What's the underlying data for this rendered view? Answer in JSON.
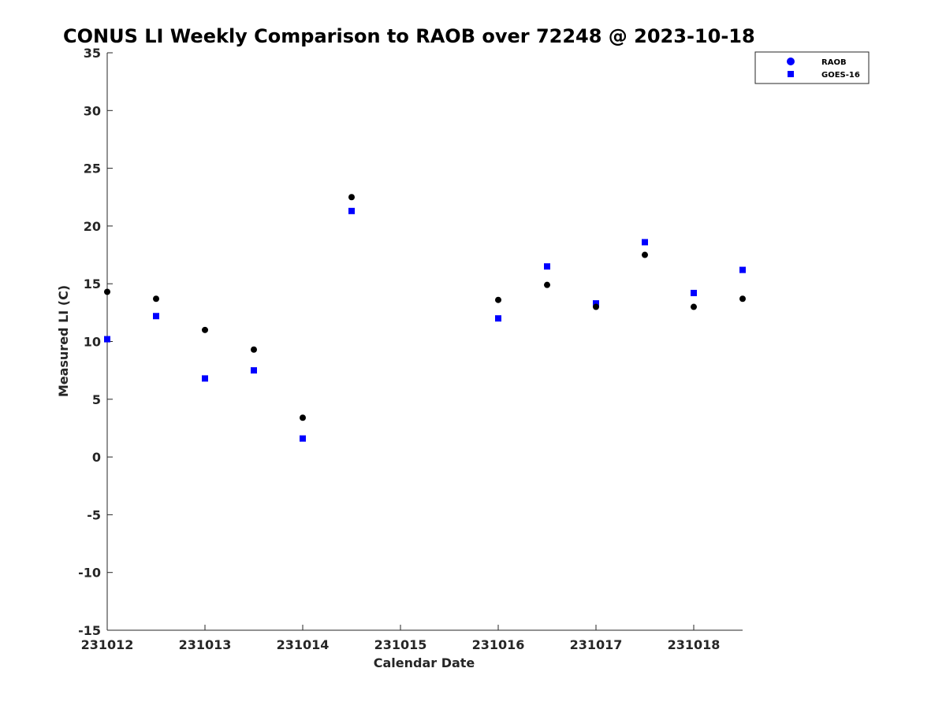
{
  "chart_data": {
    "type": "scatter",
    "title": "CONUS LI Weekly Comparison to RAOB over 72248 @ 2023-10-18",
    "xlabel": "Calendar Date",
    "ylabel": "Measured LI (C)",
    "xlim": [
      0,
      6.5
    ],
    "ylim": [
      -15,
      35
    ],
    "x_ticks": [
      0,
      1,
      2,
      3,
      4,
      5,
      6
    ],
    "x_tick_labels": [
      "231012",
      "231013",
      "231014",
      "231015",
      "231016",
      "231017",
      "231018"
    ],
    "y_ticks": [
      -15,
      -10,
      -5,
      0,
      5,
      10,
      15,
      20,
      25,
      30,
      35
    ],
    "y_tick_labels": [
      "-15",
      "-10",
      "-5",
      "0",
      "5",
      "10",
      "15",
      "20",
      "25",
      "30",
      "35"
    ],
    "grid": false,
    "legend_position": "top-right",
    "series": [
      {
        "name": "RAOB",
        "marker": "circle",
        "color": "#000000",
        "legend_color": "#0000ff",
        "x": [
          0,
          0.5,
          1,
          1.5,
          2,
          2.5,
          4,
          4.5,
          5,
          5.5,
          6,
          6.5
        ],
        "y": [
          14.3,
          13.7,
          11.0,
          9.3,
          3.4,
          22.5,
          13.6,
          14.9,
          13.0,
          17.5,
          13.0,
          13.7
        ]
      },
      {
        "name": "GOES-16",
        "marker": "square",
        "color": "#0000ff",
        "legend_color": "#0000ff",
        "x": [
          0,
          0.5,
          1,
          1.5,
          2,
          2.5,
          4,
          4.5,
          5,
          5.5,
          6,
          6.5
        ],
        "y": [
          10.2,
          12.2,
          6.8,
          7.5,
          1.6,
          21.3,
          12.0,
          16.5,
          13.3,
          18.6,
          14.2,
          16.2
        ]
      }
    ]
  }
}
